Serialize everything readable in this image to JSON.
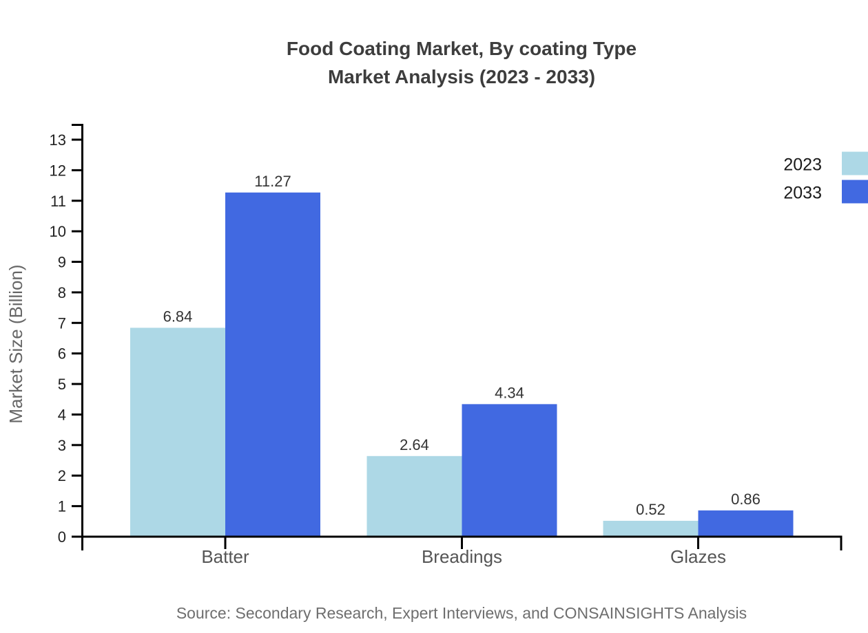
{
  "title": {
    "line1": "Food Coating Market, By coating Type",
    "line2": "Market Analysis (2023 - 2033)"
  },
  "source": "Source: Secondary Research, Expert Interviews, and CONSAINSIGHTS Analysis",
  "chart_data": {
    "type": "bar",
    "title": "Food Coating Market, By coating Type — Market Analysis (2023 - 2033)",
    "categories": [
      "Batter",
      "Breadings",
      "Glazes"
    ],
    "series": [
      {
        "name": "2023",
        "color": "#ADD8E6",
        "values": [
          6.84,
          2.64,
          0.52
        ]
      },
      {
        "name": "2033",
        "color": "#4169E1",
        "values": [
          11.27,
          4.34,
          0.86
        ]
      }
    ],
    "xlabel": "",
    "ylabel": "Market Size (Billion)",
    "ylim": [
      0,
      13
    ],
    "ytick_step": 1,
    "grid": false,
    "legend_position": "top-right",
    "value_labels": true,
    "value_label_format": "2-decimals"
  },
  "colors": {
    "axis": "#000000",
    "tick_label": "#222222",
    "category_label": "#555555",
    "value_label": "#333333",
    "title": "#3d3d3d",
    "ylabel": "#666666",
    "source": "#6e6e6e",
    "legend_text": "#1a1a1a",
    "series_2023": "#ADD8E6",
    "series_2033": "#4169E1"
  }
}
